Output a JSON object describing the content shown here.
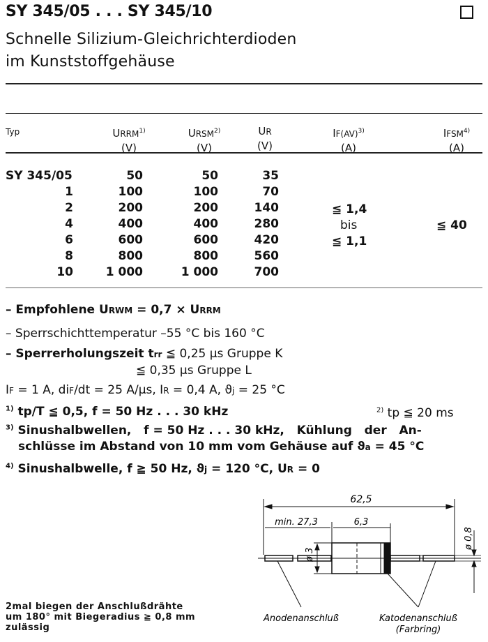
{
  "header": {
    "title": "SY 345/05 . . . SY 345/10",
    "subtitle_line1": "Schnelle Silizium-Gleichrichterdioden",
    "subtitle_line2": "im Kunststoffgehäuse"
  },
  "table": {
    "columns": [
      {
        "main": "Typ",
        "sub": "",
        "sup": "",
        "unit": ""
      },
      {
        "main": "U",
        "sub": "RRM",
        "sup": "1)",
        "unit": "(V)"
      },
      {
        "main": "U",
        "sub": "RSM",
        "sup": "2)",
        "unit": "(V)"
      },
      {
        "main": "U",
        "sub": "R",
        "sup": "",
        "unit": "(V)"
      },
      {
        "main": "I",
        "sub": "F(AV)",
        "sup": "3)",
        "unit": "(A)"
      },
      {
        "main": "I",
        "sub": "FSM",
        "sup": "4)",
        "unit": "(A)"
      }
    ],
    "rows": [
      {
        "typ": "SY 345/05",
        "urrm": "50",
        "ursm": "50",
        "ur": "35"
      },
      {
        "typ": "1",
        "urrm": "100",
        "ursm": "100",
        "ur": "70"
      },
      {
        "typ": "2",
        "urrm": "200",
        "ursm": "200",
        "ur": "140"
      },
      {
        "typ": "4",
        "urrm": "400",
        "ursm": "400",
        "ur": "280"
      },
      {
        "typ": "6",
        "urrm": "600",
        "ursm": "600",
        "ur": "420"
      },
      {
        "typ": "8",
        "urrm": "800",
        "ursm": "800",
        "ur": "560"
      },
      {
        "typ": "10",
        "urrm": "1 000",
        "ursm": "1 000",
        "ur": "700"
      }
    ],
    "ifav": [
      "≦ 1,4",
      "bis",
      "≦ 1,1"
    ],
    "ifsm": "≦ 40"
  },
  "notes": {
    "urwm": {
      "a": "– Empfohlene U",
      "b": "RWM",
      "c": " = 0,7 × U",
      "d": "RRM"
    },
    "temp": "– Sperrschichttemperatur –55 °C bis 160 °C",
    "trr": {
      "a": "– Sperrerholungszeit t",
      "b": "rr",
      "c": " ≦ 0,25 µs Gruppe K",
      "d": "≦ 0,35 µs Gruppe L"
    },
    "cond": {
      "a": "I",
      "b": "F",
      "c": " = 1 A, di",
      "d": "F",
      "e": "/dt = 25 A/µs, I",
      "f": "R",
      "g": " = 0,4 A, ϑ",
      "h": "j",
      "i": " = 25 °C"
    },
    "fn1": {
      "mark": "1)",
      "text": " tp/T ≦ 0,5, f = 50 Hz . . . 30 kHz"
    },
    "fn2": {
      "mark": "2)",
      "text": " tp ≦ 20 ms"
    },
    "fn3": {
      "mark": "3)",
      "line1": " Sinushalbwellen,   f = 50 Hz . . . 30 kHz,   Kühlung   der   An-",
      "line2a": "schlüsse im Abstand von 10 mm vom Gehäuse auf ϑ",
      "line2b": "a",
      "line2c": " = 45 °C"
    },
    "fn4": {
      "mark": "4)",
      "a": " Sinushalbwelle, f ≧ 50 Hz, ϑ",
      "b": "j",
      "c": " = 120 °C, U",
      "d": "R",
      "e": " = 0"
    }
  },
  "drawing": {
    "overall": "62,5",
    "lead_min": "min. 27,3",
    "body_len": "6,3",
    "body_dia": "ø 3",
    "lead_dia": "ø 0,8",
    "anode": "Anodenanschluß",
    "cathode": "Katodenanschluß",
    "cathode_note": "(Farbring)"
  },
  "bending_note": {
    "line1": "2mal biegen der Anschlußdrähte",
    "line2": "um 180° mit Biegeradius ≧ 0,8 mm",
    "line3": "zulässig"
  }
}
